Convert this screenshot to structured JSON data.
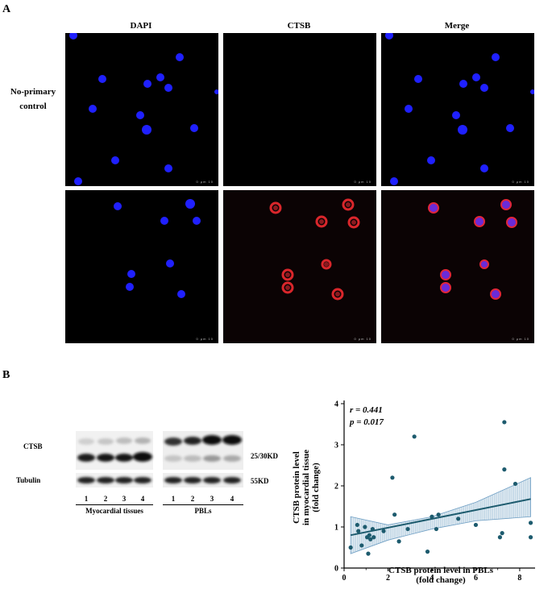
{
  "panel_a": {
    "letter": "A",
    "columns": [
      "DAPI",
      "CTSB",
      "Merge"
    ],
    "rows": [
      {
        "label_line1": "No-primary",
        "label_line2": "control"
      },
      {
        "label_line1": "",
        "label_line2": ""
      }
    ],
    "scalebar_text": "0 μm 10"
  },
  "panel_b": {
    "letter": "B",
    "blot": {
      "row_labels": [
        "CTSB",
        "Tubulin"
      ],
      "size_labels": [
        "25/30KD",
        "55KD"
      ],
      "lanes_left": [
        "1",
        "2",
        "3",
        "4"
      ],
      "lanes_right": [
        "1",
        "2",
        "3",
        "4"
      ],
      "group_left": "Myocardial tissues",
      "group_right": "PBLs"
    },
    "colors": {
      "point": "#1d5b6e",
      "fit": "#1d5b6e",
      "band": "#6f9fc4"
    }
  },
  "chart_data": {
    "type": "scatter",
    "annotation_r": "r = 0.441",
    "annotation_p": "p = 0.017",
    "xlabel_line1": "CTSB protein level in PBLs",
    "xlabel_line2": "(fold change)",
    "ylabel_line1": "CTSB protein level",
    "ylabel_line2": "in myocardial tissue",
    "ylabel_line3": "(fold change)",
    "xlim": [
      0,
      8.7
    ],
    "ylim": [
      0,
      4
    ],
    "xticks": [
      0,
      2,
      4,
      6,
      8
    ],
    "yticks": [
      0,
      1,
      2,
      3,
      4
    ],
    "x": [
      0.3,
      0.6,
      0.65,
      0.8,
      0.95,
      1.05,
      1.1,
      1.15,
      1.2,
      1.3,
      1.35,
      1.8,
      2.2,
      2.3,
      2.5,
      2.9,
      3.2,
      3.8,
      4.0,
      4.2,
      4.3,
      5.2,
      6.0,
      7.1,
      7.2,
      7.3,
      7.3,
      7.8,
      8.5,
      8.5
    ],
    "y": [
      0.5,
      1.05,
      0.9,
      0.55,
      1.0,
      0.75,
      0.35,
      0.8,
      0.7,
      0.95,
      0.75,
      0.9,
      2.2,
      1.3,
      0.65,
      0.95,
      3.2,
      0.4,
      1.25,
      0.95,
      1.3,
      1.2,
      1.05,
      0.75,
      0.85,
      2.4,
      3.55,
      2.05,
      1.1,
      0.75
    ],
    "fit_line": {
      "x": [
        0.3,
        8.5
      ],
      "y": [
        0.8,
        1.68
      ]
    },
    "ci_band": {
      "x": [
        0.3,
        2,
        4,
        6,
        8.5
      ],
      "lower": [
        0.35,
        0.68,
        0.95,
        1.15,
        1.25
      ],
      "upper": [
        1.25,
        1.05,
        1.25,
        1.6,
        2.2
      ]
    }
  }
}
